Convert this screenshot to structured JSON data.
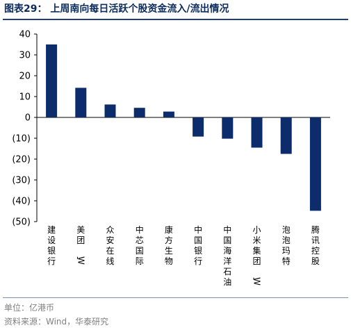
{
  "header": {
    "title": "图表29：  上周南向每日活跃个股资金流入/流出情况"
  },
  "footer": {
    "unit": "单位：亿港币",
    "source": "资料来源：Wind，华泰研究"
  },
  "colors": {
    "bar": "#0c2c6c",
    "axis": "#000000",
    "title": "#0b2a5c",
    "rule": "#1f3d78"
  },
  "chart_data": {
    "type": "bar",
    "title": "上周南向每日活跃个股资金流入/流出情况",
    "xlabel": "",
    "ylabel": "",
    "unit": "亿港币",
    "categories": [
      "建设银行",
      "美团-W",
      "众安在线",
      "中芯国际",
      "康方生物",
      "中国银行",
      "中国海洋石油",
      "小米集团-W",
      "泡泡玛特",
      "腾讯控股"
    ],
    "values": [
      35,
      14.2,
      6.2,
      4.6,
      2.8,
      -9.2,
      -10.2,
      -14.5,
      -17.5,
      -44.8
    ],
    "ylim": [
      -50,
      40
    ],
    "yticks": [
      40,
      30,
      20,
      10,
      0,
      -10,
      -20,
      -30,
      -40,
      -50
    ],
    "ytick_labels": [
      "40",
      "30",
      "20",
      "10",
      "0",
      "(10)",
      "(20)",
      "(30)",
      "(40)",
      "(50)"
    ],
    "grid": false,
    "legend": "none"
  }
}
